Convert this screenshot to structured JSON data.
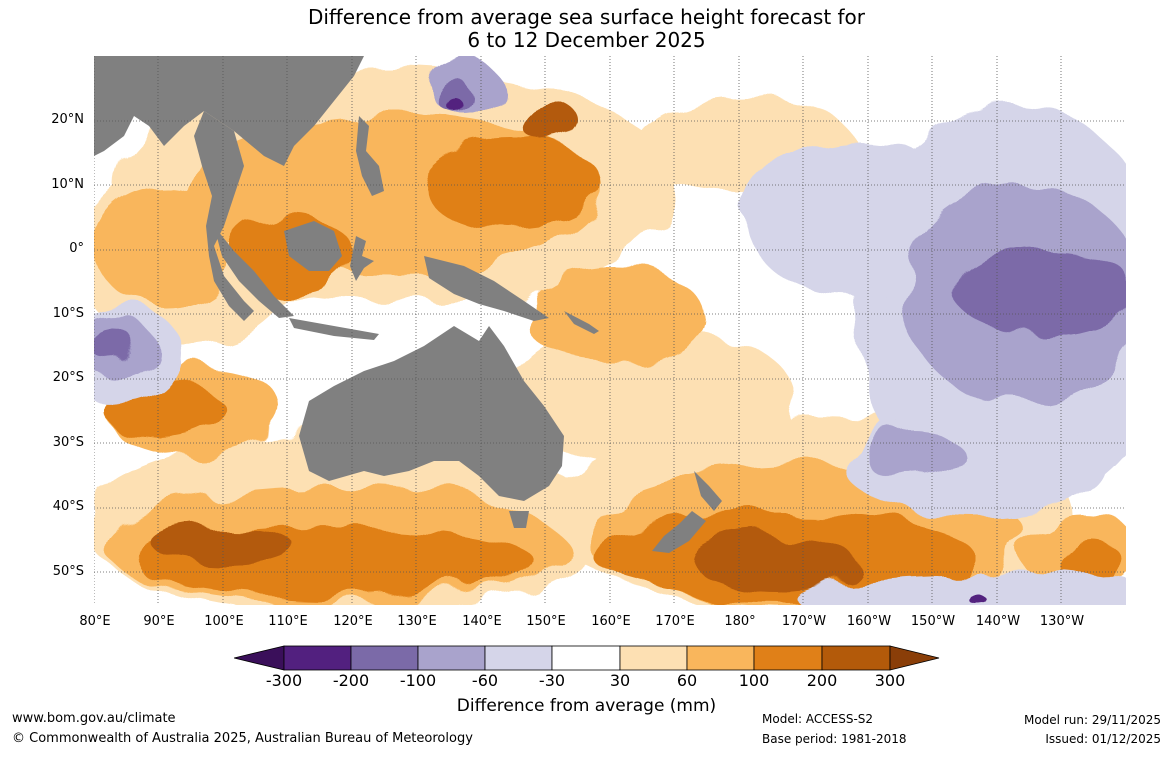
{
  "title_line1": "Difference from average sea surface height forecast for",
  "title_line2": "6 to 12 December 2025",
  "lat_labels": [
    "20°N",
    "10°N",
    "0°",
    "10°S",
    "20°S",
    "30°S",
    "40°S",
    "50°S"
  ],
  "lon_labels": [
    "80°E",
    "90°E",
    "100°E",
    "110°E",
    "120°E",
    "130°E",
    "140°E",
    "150°E",
    "160°E",
    "170°E",
    "180°",
    "170°W",
    "160°W",
    "150°W",
    "140°W",
    "130°W"
  ],
  "colorbar": {
    "ticks": [
      "-300",
      "-200",
      "-100",
      "-60",
      "-30",
      "30",
      "60",
      "100",
      "200",
      "300"
    ],
    "colors": [
      "#3a0f5a",
      "#52207f",
      "#7b6aa8",
      "#a9a3cc",
      "#d5d5e9",
      "#ffffff",
      "#fde0b3",
      "#f9b65c",
      "#e08018",
      "#b35a0a",
      "#8a3e08"
    ],
    "title": "Difference from average (mm)"
  },
  "map_colors": {
    "land": "#808080",
    "grid": "#555555"
  },
  "footer": {
    "url": "www.bom.gov.au/climate",
    "copyright": "© Commonwealth of Australia 2025, Australian Bureau of Meteorology",
    "model": "Model: ACCESS-S2",
    "base_period": "Base period: 1981-2018",
    "model_run": "Model run: 29/11/2025",
    "issued": "Issued: 01/12/2025"
  }
}
